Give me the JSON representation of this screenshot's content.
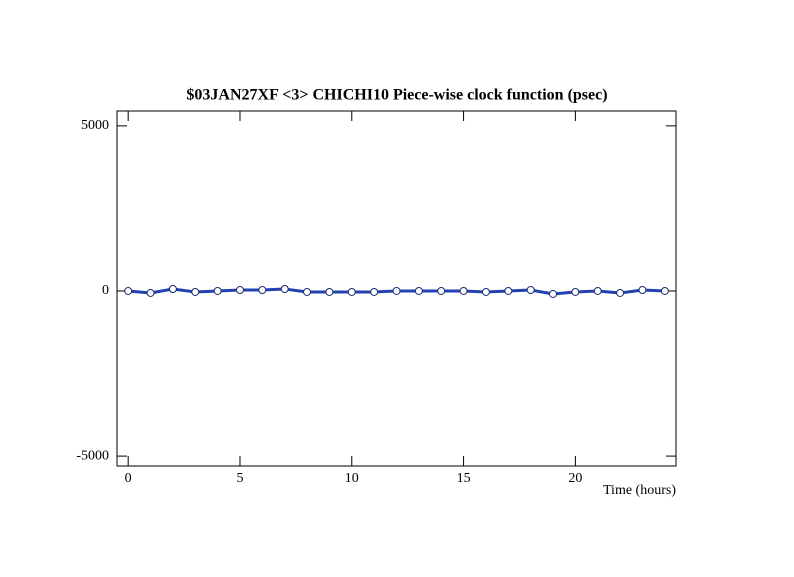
{
  "chart_data": {
    "type": "line",
    "title": "$03JAN27XF <3>   CHICHI10  Piece-wise clock function (psec)",
    "xlabel": "Time (hours)",
    "x": [
      0,
      1,
      2,
      3,
      4,
      5,
      6,
      7,
      8,
      9,
      10,
      11,
      12,
      13,
      14,
      15,
      16,
      17,
      18,
      19,
      20,
      21,
      22,
      23,
      24
    ],
    "series": [
      {
        "color": "#2341b0",
        "values": [
          0,
          -60,
          60,
          -30,
          0,
          30,
          30,
          60,
          -30,
          -30,
          -30,
          -30,
          0,
          0,
          0,
          0,
          -30,
          0,
          30,
          -90,
          -30,
          0,
          -60,
          30,
          0
        ]
      }
    ],
    "xlim": [
      -0.5,
      24.5
    ],
    "xticks": [
      0,
      5,
      10,
      15,
      20
    ],
    "ylim": [
      -5300,
      5450
    ],
    "yticks": [
      -5000,
      0,
      5000
    ]
  }
}
